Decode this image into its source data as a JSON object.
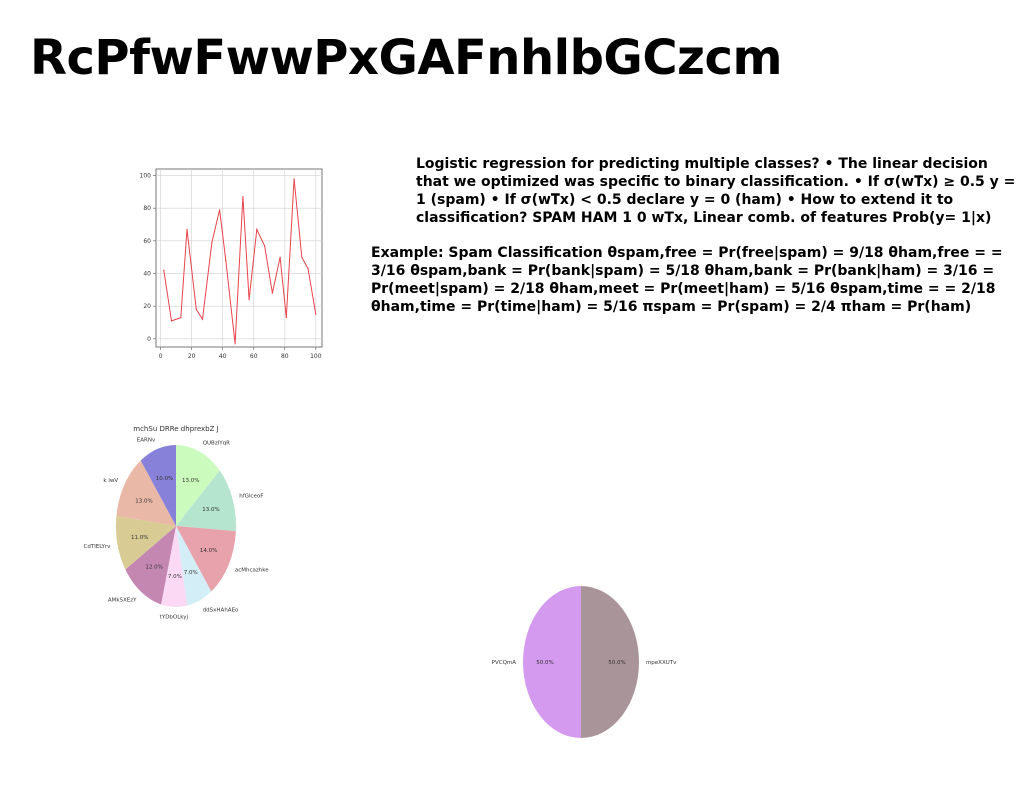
{
  "page": {
    "title": "RcPfwFwwPxGAFnhlbGCzcm",
    "paragraph1": "Logistic regression for predicting multiple classes? • The linear decision that we optimized was specific to binary classification. • If σ(w𝐓x) ≥ 0.5 y = 1 (spam) • If σ(w𝐓x) < 0.5 declare y = 0 (ham) • How to extend it to classification? SPAM HAM 1 0 wTx, Linear comb. of features Prob(y= 1|x)",
    "paragraph2": "Example: Spam Classification θspam,free = Pr(free|spam) = 9/18 θham,free = = 3/16 θspam,bank = Pr(bank|spam) = 5/18 θham,bank = Pr(bank|ham) = 3/16 = Pr(meet|spam) = 2/18 θham,meet = Pr(meet|ham) = 5/16 θspam,time = = 2/18 θham,time = Pr(time|ham) = 5/16 πspam = Pr(spam) = 2/4 πham = Pr(ham)"
  },
  "chart_data": [
    {
      "type": "line",
      "title": "",
      "xlabel": "",
      "ylabel": "",
      "xlim": [
        -3,
        104
      ],
      "ylim": [
        -5,
        104
      ],
      "xticks": [
        0,
        20,
        40,
        60,
        80,
        100
      ],
      "yticks": [
        0,
        20,
        40,
        60,
        80,
        100
      ],
      "grid": true,
      "series": [
        {
          "color": "#e8434b",
          "x": [
            2,
            7,
            13,
            17,
            23,
            27,
            33,
            38,
            42,
            48,
            53,
            57,
            62,
            67,
            72,
            77,
            81,
            86,
            91,
            95,
            100
          ],
          "y": [
            42,
            11,
            13,
            67,
            18,
            12,
            59,
            79,
            48,
            -3,
            87,
            24,
            67,
            57,
            28,
            50,
            13,
            98,
            50,
            43,
            15
          ]
        }
      ]
    },
    {
      "type": "pie",
      "title": "mchSu DRRe dhprexbZ J",
      "labels": [
        "QUBzlYqR",
        "hfGlceoF",
        "acMhcazhke",
        "ddSxHAhAEo",
        "tYDbOLkyj",
        "AMkSXEzY",
        "CdTlELYrv",
        "k iwV",
        "EARNv"
      ],
      "values": [
        13.0,
        13.0,
        14.0,
        7.0,
        7.0,
        12.0,
        11.0,
        13.0,
        10.0
      ],
      "value_labels": [
        "13.0%",
        "13.0%",
        "14.0%",
        "7.0%",
        "7.0%",
        "12.0%",
        "11.0%",
        "13.0%",
        "10.0%"
      ],
      "colors": [
        "#ccfcbd",
        "#b6e5cf",
        "#e8a2ab",
        "#d4eef7",
        "#fbd8f4",
        "#c387b2",
        "#d8cc94",
        "#eab8a7",
        "#8881d9"
      ]
    },
    {
      "type": "pie",
      "title": "",
      "labels": [
        "mpeXXUTv",
        "PVCQmA"
      ],
      "values": [
        50.0,
        50.0
      ],
      "value_labels": [
        "50.0%",
        "50.0%"
      ],
      "colors": [
        "#a99599",
        "#d39af0"
      ]
    }
  ]
}
